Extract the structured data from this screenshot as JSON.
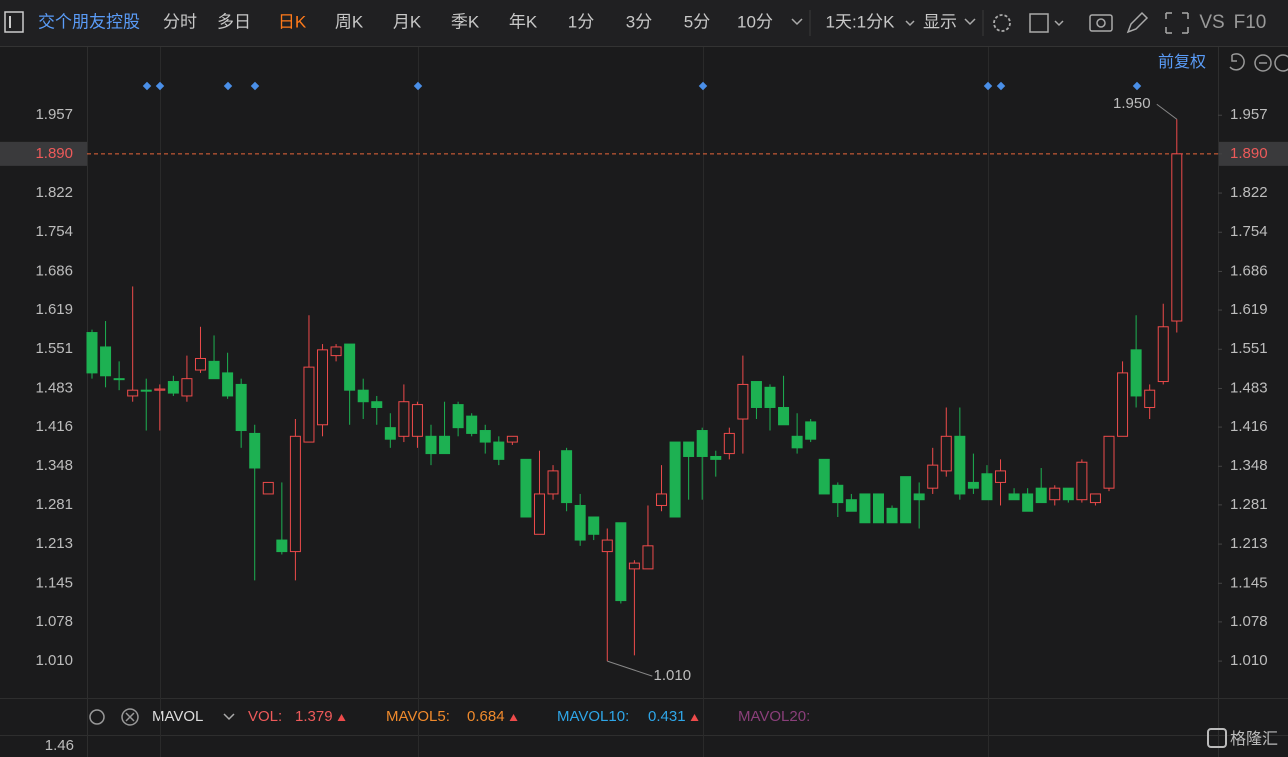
{
  "toolbar": {
    "stock": "交个朋友控股",
    "periods": [
      "分时",
      "多日",
      "日K",
      "周K",
      "月K",
      "季K",
      "年K",
      "1分",
      "3分",
      "5分",
      "10分"
    ],
    "active_period": 2,
    "range": "1天:1分K",
    "display": "显示",
    "vs": "VS",
    "f10": "F10"
  },
  "adjust": "前复权",
  "chart_data": {
    "type": "candlestick",
    "up_color": "#ee4b4b",
    "down_color": "#1db152",
    "ylim": [
      0.946,
      2.032
    ],
    "yticks": [
      1.957,
      {
        "value": 1.89,
        "label": "1.890"
      },
      1.822,
      1.754,
      1.686,
      1.619,
      1.551,
      1.483,
      1.416,
      1.348,
      1.281,
      1.213,
      1.145,
      1.078,
      {
        "value": 1.01,
        "label": "1.010"
      }
    ],
    "last_price": 1.89,
    "annotations": [
      {
        "value": 1.95,
        "label": "1.950"
      },
      {
        "value": 1.01,
        "label": "1.010"
      }
    ],
    "open": [
      1.58,
      1.555,
      1.5,
      1.47,
      1.48,
      1.48,
      1.495,
      1.47,
      1.515,
      1.53,
      1.51,
      1.49,
      1.405,
      1.3,
      1.22,
      1.2,
      1.39,
      1.42,
      1.54,
      1.56,
      1.48,
      1.46,
      1.415,
      1.4,
      1.4,
      1.4,
      1.4,
      1.455,
      1.435,
      1.41,
      1.39,
      1.39,
      1.36,
      1.23,
      1.3,
      1.375,
      1.28,
      1.26,
      1.2,
      1.25,
      1.17,
      1.17,
      1.28,
      1.39,
      1.39,
      1.41,
      1.365,
      1.37,
      1.43,
      1.495,
      1.485,
      1.45,
      1.4,
      1.425,
      1.36,
      1.315,
      1.29,
      1.3,
      1.3,
      1.275,
      1.33,
      1.3,
      1.31,
      1.34,
      1.4,
      1.32,
      1.335,
      1.32,
      1.3,
      1.3,
      1.31,
      1.29,
      1.31,
      1.29,
      1.285,
      1.31,
      1.4,
      1.55,
      1.45,
      1.495,
      1.6
    ],
    "high": [
      1.585,
      1.6,
      1.53,
      1.66,
      1.5,
      1.49,
      1.505,
      1.54,
      1.59,
      1.575,
      1.545,
      1.5,
      1.42,
      1.32,
      1.32,
      1.43,
      1.61,
      1.56,
      1.56,
      1.56,
      1.5,
      1.47,
      1.44,
      1.49,
      1.46,
      1.42,
      1.46,
      1.46,
      1.44,
      1.42,
      1.4,
      1.4,
      1.36,
      1.375,
      1.35,
      1.38,
      1.3,
      1.26,
      1.24,
      1.25,
      1.185,
      1.28,
      1.35,
      1.39,
      1.39,
      1.415,
      1.375,
      1.415,
      1.54,
      1.495,
      1.49,
      1.505,
      1.44,
      1.43,
      1.36,
      1.32,
      1.3,
      1.3,
      1.3,
      1.28,
      1.33,
      1.32,
      1.38,
      1.45,
      1.45,
      1.37,
      1.35,
      1.36,
      1.31,
      1.31,
      1.345,
      1.315,
      1.31,
      1.36,
      1.3,
      1.4,
      1.53,
      1.61,
      1.49,
      1.63,
      1.95
    ],
    "low": [
      1.5,
      1.485,
      1.48,
      1.46,
      1.41,
      1.41,
      1.47,
      1.46,
      1.51,
      1.5,
      1.465,
      1.38,
      1.15,
      1.3,
      1.195,
      1.15,
      1.39,
      1.4,
      1.53,
      1.42,
      1.43,
      1.42,
      1.38,
      1.39,
      1.38,
      1.35,
      1.37,
      1.4,
      1.4,
      1.37,
      1.35,
      1.385,
      1.26,
      1.23,
      1.29,
      1.27,
      1.21,
      1.22,
      1.01,
      1.11,
      1.02,
      1.17,
      1.27,
      1.26,
      1.29,
      1.29,
      1.33,
      1.36,
      1.37,
      1.43,
      1.41,
      1.42,
      1.37,
      1.39,
      1.3,
      1.26,
      1.27,
      1.25,
      1.25,
      1.25,
      1.25,
      1.24,
      1.3,
      1.33,
      1.29,
      1.3,
      1.29,
      1.28,
      1.29,
      1.27,
      1.285,
      1.28,
      1.285,
      1.285,
      1.28,
      1.305,
      1.4,
      1.45,
      1.43,
      1.49,
      1.58
    ],
    "close": [
      1.51,
      1.505,
      1.5,
      1.48,
      1.48,
      1.482,
      1.475,
      1.5,
      1.535,
      1.5,
      1.47,
      1.41,
      1.345,
      1.32,
      1.2,
      1.4,
      1.52,
      1.55,
      1.555,
      1.48,
      1.46,
      1.45,
      1.395,
      1.46,
      1.455,
      1.37,
      1.37,
      1.415,
      1.405,
      1.39,
      1.36,
      1.4,
      1.26,
      1.3,
      1.34,
      1.285,
      1.22,
      1.23,
      1.22,
      1.115,
      1.18,
      1.21,
      1.3,
      1.26,
      1.365,
      1.365,
      1.36,
      1.405,
      1.49,
      1.45,
      1.45,
      1.42,
      1.38,
      1.395,
      1.3,
      1.285,
      1.27,
      1.25,
      1.25,
      1.25,
      1.25,
      1.29,
      1.35,
      1.4,
      1.3,
      1.31,
      1.29,
      1.34,
      1.29,
      1.27,
      1.285,
      1.31,
      1.29,
      1.355,
      1.3,
      1.4,
      1.51,
      1.47,
      1.48,
      1.59,
      1.89
    ]
  },
  "indicator": {
    "name": "MAVOL",
    "items": [
      {
        "label": "VOL:",
        "value": 1.379,
        "color": "#ee5a5a"
      },
      {
        "label": "MAVOL5:",
        "value": 0.684,
        "color": "#f08a2c"
      },
      {
        "label": "MAVOL10:",
        "value": 0.431,
        "color": "#2ea6e8"
      },
      {
        "label": "MAVOL20:",
        "color": "#8a3f7a"
      }
    ],
    "axis_label": 1.46
  },
  "logo": "格隆汇"
}
